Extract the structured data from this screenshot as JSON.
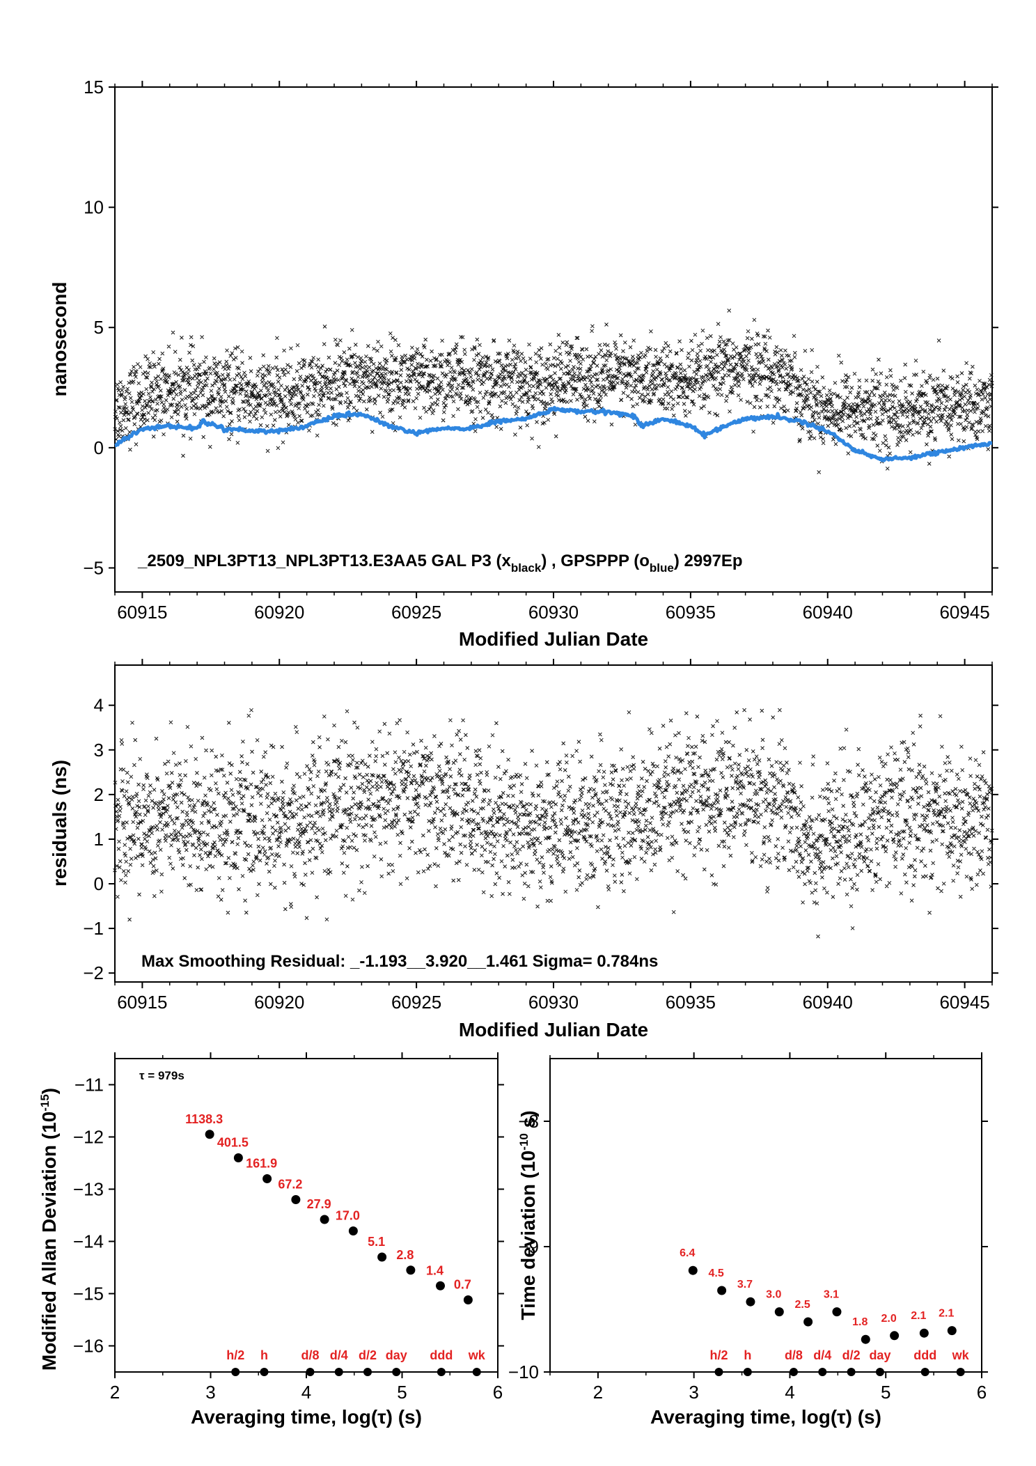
{
  "chart_data": [
    {
      "type": "scatter",
      "panel": "top",
      "xlabel": "Modified Julian Date",
      "ylabel": "nanosecond",
      "xlim": [
        60914,
        60946
      ],
      "ylim": [
        -6,
        15
      ],
      "xticks": [
        60915,
        60920,
        60925,
        60930,
        60935,
        60940,
        60945
      ],
      "yticks": [
        -5,
        0,
        5,
        10,
        15
      ],
      "annotation": {
        "prefix": "_2509_NPL3PT13_NPL3PT13.E3AA5     GAL P3 (x",
        "sub1": "black",
        "middle": ") ,  GPSPPP (o",
        "sub2": "blue",
        "suffix": ")  2997Ep"
      },
      "series": [
        {
          "marker": "x",
          "color": "#111111",
          "trend_points": [
            [
              60914,
              1.6
            ],
            [
              60916,
              2.5
            ],
            [
              60918,
              2.3
            ],
            [
              60920,
              2.1
            ],
            [
              60922,
              2.6
            ],
            [
              60923,
              3.0
            ],
            [
              60925,
              2.7
            ],
            [
              60927,
              2.8
            ],
            [
              60929,
              2.6
            ],
            [
              60931,
              3.0
            ],
            [
              60933,
              2.9
            ],
            [
              60935,
              2.7
            ],
            [
              60937,
              3.4
            ],
            [
              60938.5,
              3.0
            ],
            [
              60939.5,
              1.7
            ],
            [
              60941,
              1.6
            ],
            [
              60943,
              1.5
            ],
            [
              60946,
              1.8
            ]
          ],
          "scatter_sd": 0.8,
          "n_points": 2997
        },
        {
          "marker": "o",
          "color": "#2f86e0",
          "line_points": [
            [
              60914,
              0.1
            ],
            [
              60915,
              0.8
            ],
            [
              60916,
              0.9
            ],
            [
              60917,
              0.8
            ],
            [
              60917.2,
              1.1
            ],
            [
              60918,
              0.8
            ],
            [
              60919,
              0.7
            ],
            [
              60920,
              0.7
            ],
            [
              60921,
              0.9
            ],
            [
              60922,
              1.3
            ],
            [
              60923,
              1.4
            ],
            [
              60924,
              0.9
            ],
            [
              60925,
              0.6
            ],
            [
              60926,
              0.8
            ],
            [
              60927,
              0.8
            ],
            [
              60928,
              1.1
            ],
            [
              60929,
              1.2
            ],
            [
              60930,
              1.6
            ],
            [
              60931,
              1.5
            ],
            [
              60932,
              1.5
            ],
            [
              60933,
              1.3
            ],
            [
              60933.2,
              0.9
            ],
            [
              60934,
              1.2
            ],
            [
              60935,
              0.9
            ],
            [
              60935.5,
              0.5
            ],
            [
              60936,
              0.8
            ],
            [
              60937,
              1.2
            ],
            [
              60938,
              1.3
            ],
            [
              60939,
              1.1
            ],
            [
              60940,
              0.7
            ],
            [
              60941,
              -0.1
            ],
            [
              60942,
              -0.5
            ],
            [
              60943,
              -0.4
            ],
            [
              60944,
              -0.2
            ],
            [
              60945,
              0.0
            ],
            [
              60946,
              0.2
            ]
          ]
        }
      ]
    },
    {
      "type": "scatter",
      "panel": "middle",
      "xlabel": "Modified Julian Date",
      "ylabel": "residuals (ns)",
      "xlim": [
        60914,
        60946
      ],
      "ylim": [
        -2.2,
        4.9
      ],
      "xticks": [
        60915,
        60920,
        60925,
        60930,
        60935,
        60940,
        60945
      ],
      "yticks": [
        -2,
        -1,
        0,
        1,
        2,
        3,
        4
      ],
      "annotation": "Max Smoothing Residual: _-1.193__3.920__1.461  Sigma= 0.784ns",
      "series": [
        {
          "marker": "x",
          "color": "#111111",
          "trend_points": [
            [
              60914,
              1.4
            ],
            [
              60916,
              1.5
            ],
            [
              60918,
              1.5
            ],
            [
              60920,
              1.3
            ],
            [
              60922,
              1.6
            ],
            [
              60923,
              1.8
            ],
            [
              60925,
              1.9
            ],
            [
              60927,
              1.7
            ],
            [
              60929,
              1.3
            ],
            [
              60931,
              1.3
            ],
            [
              60933,
              1.5
            ],
            [
              60935,
              1.8
            ],
            [
              60937,
              2.0
            ],
            [
              60938.5,
              1.8
            ],
            [
              60939.5,
              0.9
            ],
            [
              60941,
              1.2
            ],
            [
              60943,
              1.6
            ],
            [
              60946,
              1.4
            ]
          ],
          "scatter_sd": 0.78,
          "n_points": 2997
        }
      ]
    },
    {
      "type": "scatter",
      "panel": "bottom-left",
      "xlabel": "Averaging time, log(τ) (s)",
      "ylabel": "Modified Allan Deviation (10",
      "ylabel_sup": "-15",
      "ylabel_end": ")",
      "xlim": [
        2,
        6
      ],
      "ylim": [
        -16.5,
        -10.5
      ],
      "xticks": [
        2,
        3,
        4,
        5,
        6
      ],
      "yticks": [
        -16,
        -15,
        -14,
        -13,
        -12,
        -11
      ],
      "tau_note": "τ = 979s",
      "x": [
        2.99,
        3.29,
        3.59,
        3.89,
        4.19,
        4.49,
        4.79,
        5.09,
        5.4,
        5.69
      ],
      "y": [
        -11.95,
        -12.4,
        -12.8,
        -13.2,
        -13.58,
        -13.8,
        -14.3,
        -14.55,
        -14.85,
        -15.12
      ],
      "labels": [
        "1138.3",
        "401.5",
        "161.9",
        "67.2",
        "27.9",
        "17.0",
        "5.1",
        "2.8",
        "1.4",
        "0.7"
      ],
      "markers": [
        {
          "label": "h/2",
          "x": 3.26
        },
        {
          "label": "h",
          "x": 3.56
        },
        {
          "label": "d/8",
          "x": 4.04
        },
        {
          "label": "d/4",
          "x": 4.34
        },
        {
          "label": "d/2",
          "x": 4.64
        },
        {
          "label": "day",
          "x": 4.94
        },
        {
          "label": "ddd",
          "x": 5.41
        },
        {
          "label": "wk",
          "x": 5.78
        }
      ]
    },
    {
      "type": "scatter",
      "panel": "bottom-right",
      "xlabel": "Averaging time, log(τ) (s)",
      "ylabel": "Time deviation (10",
      "ylabel_sup": "-10",
      "ylabel_end": " s)",
      "xlim": [
        1.5,
        6
      ],
      "ylim": [
        -10,
        -7.5
      ],
      "xticks": [
        2,
        3,
        4,
        5,
        6
      ],
      "yticks": [
        -10,
        -9,
        -8
      ],
      "x": [
        2.99,
        3.29,
        3.59,
        3.89,
        4.19,
        4.49,
        4.79,
        5.09,
        5.4,
        5.69
      ],
      "y": [
        -9.19,
        -9.35,
        -9.44,
        -9.52,
        -9.6,
        -9.52,
        -9.74,
        -9.71,
        -9.69,
        -9.67
      ],
      "labels": [
        "6.4",
        "4.5",
        "3.7",
        "3.0",
        "2.5",
        "3.1",
        "1.8",
        "2.0",
        "2.1",
        "2.1"
      ],
      "markers": [
        {
          "label": "h/2",
          "x": 3.26
        },
        {
          "label": "h",
          "x": 3.56
        },
        {
          "label": "d/8",
          "x": 4.04
        },
        {
          "label": "d/4",
          "x": 4.34
        },
        {
          "label": "d/2",
          "x": 4.64
        },
        {
          "label": "day",
          "x": 4.94
        },
        {
          "label": "ddd",
          "x": 5.41
        },
        {
          "label": "wk",
          "x": 5.78
        }
      ]
    }
  ]
}
